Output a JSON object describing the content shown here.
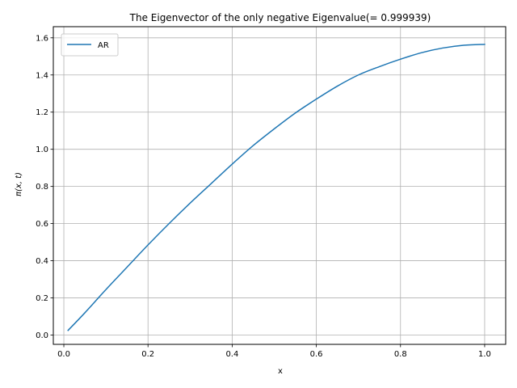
{
  "chart_data": {
    "type": "line",
    "title": "The Eigenvector of the only negative Eigenvalue(= 0.999939)",
    "xlabel": "x",
    "ylabel": "π(x, t)",
    "xlim": [
      -0.025,
      1.05
    ],
    "ylim": [
      -0.05,
      1.66
    ],
    "xticks": [
      0.0,
      0.2,
      0.4,
      0.6,
      0.8,
      1.0
    ],
    "xtick_labels": [
      "0.0",
      "0.2",
      "0.4",
      "0.6",
      "0.8",
      "1.0"
    ],
    "yticks": [
      0.0,
      0.2,
      0.4,
      0.6,
      0.8,
      1.0,
      1.2,
      1.4,
      1.6
    ],
    "ytick_labels": [
      "0.0",
      "0.2",
      "0.4",
      "0.6",
      "0.8",
      "1.0",
      "1.2",
      "1.4",
      "1.6"
    ],
    "grid": true,
    "legend_position": "upper-left",
    "series": [
      {
        "name": "AR",
        "color": "#1f77b4",
        "x": [
          0.01,
          0.05,
          0.1,
          0.15,
          0.2,
          0.25,
          0.3,
          0.35,
          0.4,
          0.45,
          0.5,
          0.55,
          0.6,
          0.65,
          0.7,
          0.75,
          0.8,
          0.85,
          0.9,
          0.95,
          1.0
        ],
        "y": [
          0.025,
          0.12,
          0.245,
          0.365,
          0.485,
          0.6,
          0.71,
          0.815,
          0.92,
          1.02,
          1.11,
          1.195,
          1.27,
          1.34,
          1.4,
          1.445,
          1.485,
          1.52,
          1.545,
          1.56,
          1.565
        ]
      }
    ]
  }
}
